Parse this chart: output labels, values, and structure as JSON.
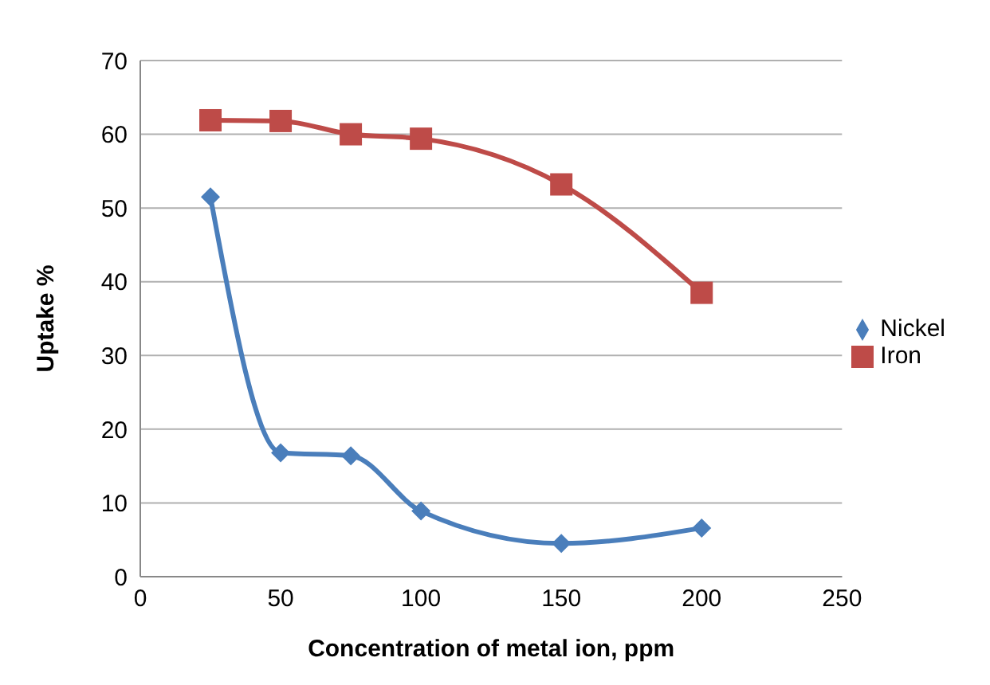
{
  "chart_data": {
    "type": "line",
    "xlabel": "Concentration of metal ion, ppm",
    "ylabel": "Uptake %",
    "xlim": [
      0,
      250
    ],
    "xticks": [
      0,
      50,
      100,
      150,
      200,
      250
    ],
    "ylim": [
      0,
      70
    ],
    "yticks": [
      0,
      10,
      20,
      30,
      40,
      50,
      60,
      70
    ],
    "grid": "y",
    "legend": "right",
    "x": [
      25,
      50,
      75,
      100,
      150,
      200
    ],
    "series": [
      {
        "name": "Nickel",
        "color": "#4a7ebb",
        "marker": "diamond",
        "values": [
          51.5,
          16.8,
          16.4,
          8.9,
          4.5,
          6.6
        ]
      },
      {
        "name": "Iron",
        "color": "#be4b48",
        "marker": "square",
        "values": [
          61.9,
          61.8,
          60,
          59.4,
          53.2,
          38.5
        ]
      }
    ]
  }
}
